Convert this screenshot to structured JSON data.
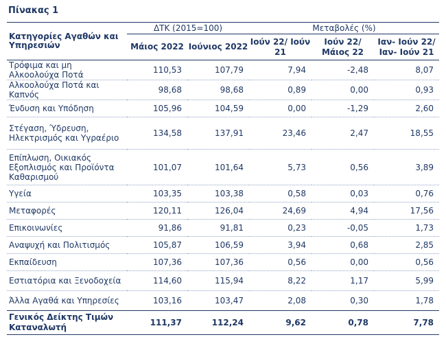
{
  "caption": "Πίνακας 1",
  "header": {
    "category": "Κατηγορίες Αγαθών και Υπηρεσιών",
    "group_index": "ΔΤΚ (2015=100)",
    "group_change": "Μεταβολές (%)",
    "columns": [
      "Μάιος 2022",
      "Ιούνιος 2022",
      "Ιούν 22/ Ιούν 21",
      "Ιούν 22/ Μάιος 22",
      "Ιαν- Ιούν 22/ Ιαν- Ιούν 21"
    ]
  },
  "rows": [
    {
      "label": "Τρόφιμα και μη Αλκοολούχα Ποτά",
      "values": [
        "110,53",
        "107,79",
        "7,94",
        "-2,48",
        "8,07"
      ]
    },
    {
      "label": "Αλκοολούχα Ποτά και Καπνός",
      "values": [
        "98,68",
        "98,68",
        "0,89",
        "0,00",
        "0,93"
      ]
    },
    {
      "label": "Ένδυση και Υπόδηση",
      "values": [
        "105,96",
        "104,59",
        "0,00",
        "-1,29",
        "2,60"
      ]
    },
    {
      "label": "Στέγαση, Ύδρευση, Ηλεκτρισμός και Υγραέριο",
      "values": [
        "134,58",
        "137,91",
        "23,46",
        "2,47",
        "18,55"
      ]
    },
    {
      "label": "Επίπλωση, Οικιακός Εξοπλισμός και Προϊόντα Καθαρισμού",
      "values": [
        "101,07",
        "101,64",
        "5,73",
        "0,56",
        "3,89"
      ]
    },
    {
      "label": "Υγεία",
      "values": [
        "103,35",
        "103,38",
        "0,58",
        "0,03",
        "0,76"
      ]
    },
    {
      "label": "Μεταφορές",
      "values": [
        "120,11",
        "126,04",
        "24,69",
        "4,94",
        "17,56"
      ]
    },
    {
      "label": "Επικοινωνίες",
      "values": [
        "91,86",
        "91,81",
        "0,23",
        "-0,05",
        "1,73"
      ]
    },
    {
      "label": "Αναψυχή και Πολιτισμός",
      "values": [
        "105,87",
        "106,59",
        "3,94",
        "0,68",
        "2,85"
      ]
    },
    {
      "label": "Εκπαίδευση",
      "values": [
        "107,36",
        "107,36",
        "0,56",
        "0,00",
        "0,56"
      ]
    },
    {
      "label": "Εστιατόρια και Ξενοδοχεία",
      "values": [
        "114,60",
        "115,94",
        "8,22",
        "1,17",
        "5,99"
      ]
    },
    {
      "label": "Άλλα Αγαθά και Υπηρεσίες",
      "values": [
        "103,16",
        "103,47",
        "2,08",
        "0,30",
        "1,78"
      ]
    }
  ],
  "total": {
    "label": "Γενικός Δείκτης Τιμών Καταναλωτή",
    "values": [
      "111,37",
      "112,24",
      "9,62",
      "0,78",
      "7,78"
    ]
  }
}
